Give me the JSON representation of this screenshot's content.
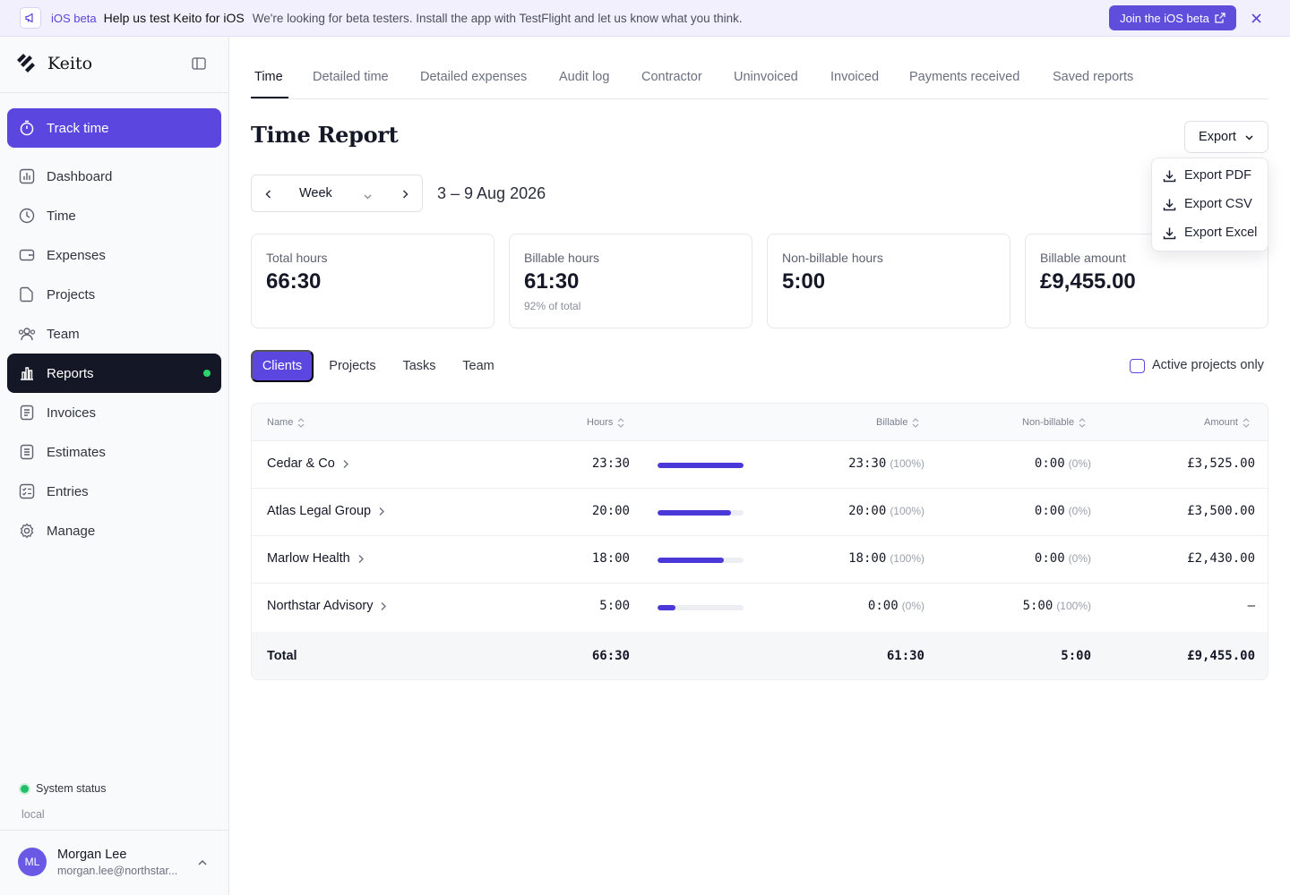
{
  "banner": {
    "tag": "iOS beta",
    "headline": "Help us test Keito for iOS",
    "message": "We're looking for beta testers. Install the app with TestFlight and let us know what you think.",
    "join_label": "Join the iOS beta"
  },
  "sidebar": {
    "brand": "Keito",
    "track_label": "Track time",
    "items": [
      {
        "label": "Dashboard",
        "icon": "chart-bars-icon"
      },
      {
        "label": "Time",
        "icon": "clock-icon"
      },
      {
        "label": "Expenses",
        "icon": "wallet-icon"
      },
      {
        "label": "Projects",
        "icon": "folder-icon"
      },
      {
        "label": "Team",
        "icon": "users-icon"
      },
      {
        "label": "Reports",
        "icon": "reports-icon",
        "active": true
      },
      {
        "label": "Invoices",
        "icon": "invoice-icon"
      },
      {
        "label": "Estimates",
        "icon": "estimate-icon"
      },
      {
        "label": "Entries",
        "icon": "entries-icon"
      },
      {
        "label": "Manage",
        "icon": "gear-icon"
      }
    ],
    "status": "System status",
    "environment": "local",
    "user": {
      "initials": "ML",
      "name": "Morgan Lee",
      "email": "morgan.lee@northstar..."
    }
  },
  "tabs": [
    "Time",
    "Detailed time",
    "Detailed expenses",
    "Audit log",
    "Contractor",
    "Uninvoiced",
    "Invoiced",
    "Payments received",
    "Saved reports"
  ],
  "page": {
    "title": "Time Report",
    "export_label": "Export",
    "export_menu": [
      "Export PDF",
      "Export CSV",
      "Export Excel"
    ],
    "period": "Week",
    "range": "3 – 9 Aug 2026"
  },
  "summary": [
    {
      "label": "Total hours",
      "value": "66:30",
      "sub": ""
    },
    {
      "label": "Billable hours",
      "value": "61:30",
      "sub": "92% of total"
    },
    {
      "label": "Non-billable hours",
      "value": "5:00",
      "sub": ""
    },
    {
      "label": "Billable amount",
      "value": "£9,455.00",
      "sub": ""
    }
  ],
  "groupings": [
    "Clients",
    "Projects",
    "Tasks",
    "Team"
  ],
  "active_only_label": "Active projects only",
  "table": {
    "columns": [
      "Name",
      "Hours",
      "Billable",
      "Non-billable",
      "Amount"
    ],
    "rows": [
      {
        "name": "Cedar & Co",
        "hours": "23:30",
        "bar": 1.0,
        "billable": "23:30",
        "billable_pct": "(100%)",
        "nonbillable": "0:00",
        "nonbillable_pct": "(0%)",
        "amount": "£3,525.00"
      },
      {
        "name": "Atlas Legal Group",
        "hours": "20:00",
        "bar": 0.851,
        "billable": "20:00",
        "billable_pct": "(100%)",
        "nonbillable": "0:00",
        "nonbillable_pct": "(0%)",
        "amount": "£3,500.00"
      },
      {
        "name": "Marlow Health",
        "hours": "18:00",
        "bar": 0.766,
        "billable": "18:00",
        "billable_pct": "(100%)",
        "nonbillable": "0:00",
        "nonbillable_pct": "(0%)",
        "amount": "£2,430.00"
      },
      {
        "name": "Northstar Advisory",
        "hours": "5:00",
        "bar": 0.213,
        "billable": "0:00",
        "billable_pct": "(0%)",
        "nonbillable": "5:00",
        "nonbillable_pct": "(100%)",
        "amount": "–"
      }
    ],
    "total": {
      "label": "Total",
      "hours": "66:30",
      "billable": "61:30",
      "nonbillable": "5:00",
      "amount": "£9,455.00"
    }
  },
  "colors": {
    "accent": "#5b47e0",
    "active_nav": "#141726",
    "status_green": "#1fbf68"
  }
}
